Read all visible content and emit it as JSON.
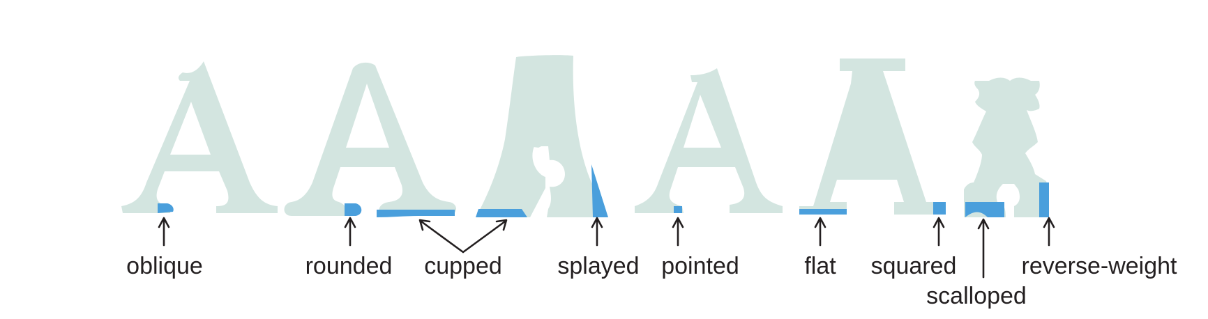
{
  "colors": {
    "glyph": "#d3e5e0",
    "highlight": "#4a9fdc",
    "arrow": "#231f20",
    "text": "#231f20"
  },
  "labels": {
    "oblique": "oblique",
    "rounded": "rounded",
    "cupped": "cupped",
    "splayed": "splayed",
    "pointed": "pointed",
    "flat": "flat",
    "squared": "squared",
    "scalloped": "scalloped",
    "reverse_weight": "reverse-weight"
  }
}
